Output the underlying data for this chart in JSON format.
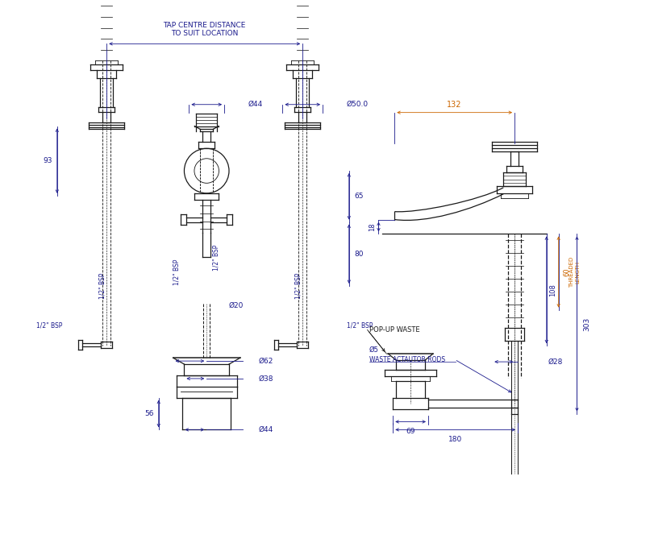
{
  "bg_color": "#ffffff",
  "line_color": "#1a1a1a",
  "dim_color": "#1a1a8c",
  "orange_color": "#cc6600",
  "lw": 0.9,
  "dlw": 0.6,
  "annotations": {
    "tap_centre_distance": "TAP CENTRE DISTANCE\nTO SUIT LOCATION",
    "dim_44": "Ø44",
    "dim_50": "Ø50.0",
    "dim_93": "93",
    "dim_65": "65",
    "dim_80": "80",
    "dim_20": "Ø20",
    "dim_62": "Ø62",
    "dim_38": "Ø38",
    "dim_56": "56",
    "dim_44b": "Ø44",
    "bsp_vert": "1/2\" BSP",
    "bsp_horiz": "1/2\" BSP",
    "dim_132": "132",
    "dim_18": "18",
    "dim_60": "60",
    "dim_threaded": "THREADED\nLENGTH",
    "dim_108": "108",
    "dim_303": "303",
    "dim_28": "Ø28",
    "dim_5": "Ø5",
    "popup_waste": "POP-UP WASTE",
    "waste_rods": "WASTE ACTAUTOR RODS",
    "dim_69": "69",
    "dim_180": "180"
  }
}
